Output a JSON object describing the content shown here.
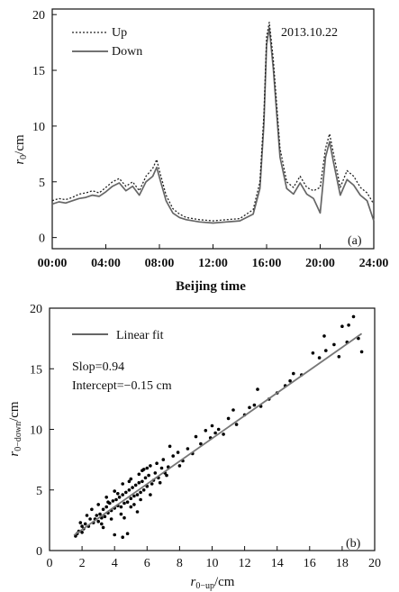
{
  "chart_data": [
    {
      "panel_label": "(a)",
      "type": "line",
      "title": "",
      "xlabel": "Beijing time",
      "ylabel": "r₀/cm",
      "ylabel_main": "r",
      "ylabel_sub": "0",
      "ylabel_unit": "/cm",
      "date_text": "2013.10.22",
      "x_tick_labels": [
        "00:00",
        "04:00",
        "08:00",
        "12:00",
        "16:00",
        "20:00",
        "24:00"
      ],
      "x_tick_hours": [
        0,
        4,
        8,
        12,
        16,
        20,
        24
      ],
      "xlim": [
        0,
        24
      ],
      "y_ticks": [
        0,
        5,
        10,
        15,
        20
      ],
      "y_tick_labels": [
        "0",
        "5",
        "10",
        "15",
        "20"
      ],
      "ylim": [
        -1,
        20.5
      ],
      "legend_position": "top-left",
      "series": [
        {
          "name": "Up",
          "style": "dotted",
          "color": "#222222",
          "x": [
            0,
            0.5,
            1,
            1.5,
            2,
            2.5,
            3,
            3.5,
            4,
            4.5,
            5,
            5.5,
            6,
            6.5,
            7,
            7.5,
            7.8,
            8,
            8.5,
            9,
            9.5,
            10,
            11,
            12,
            13,
            14,
            15,
            15.5,
            15.8,
            16,
            16.2,
            16.5,
            17,
            17.5,
            18,
            18.5,
            19,
            19.5,
            20,
            20.4,
            20.7,
            21,
            21.5,
            22,
            22.5,
            23,
            23.5,
            24
          ],
          "y": [
            3.3,
            3.5,
            3.4,
            3.6,
            3.9,
            4.0,
            4.2,
            4.0,
            4.5,
            5.0,
            5.3,
            4.6,
            5.0,
            4.2,
            5.5,
            6.2,
            7.0,
            6.0,
            3.8,
            2.6,
            2.1,
            1.8,
            1.6,
            1.5,
            1.6,
            1.7,
            2.5,
            5.0,
            11.0,
            18.0,
            19.3,
            16.0,
            8.0,
            5.0,
            4.5,
            5.5,
            4.5,
            4.2,
            4.5,
            8.0,
            9.3,
            7.5,
            4.5,
            6.0,
            5.5,
            4.5,
            4.0,
            3.0
          ]
        },
        {
          "name": "Down",
          "style": "solid",
          "color": "#666666",
          "x": [
            0,
            0.5,
            1,
            1.5,
            2,
            2.5,
            3,
            3.5,
            4,
            4.5,
            5,
            5.5,
            6,
            6.5,
            7,
            7.5,
            7.8,
            8,
            8.5,
            9,
            9.5,
            10,
            11,
            12,
            13,
            14,
            15,
            15.5,
            15.8,
            16,
            16.2,
            16.5,
            17,
            17.5,
            18,
            18.5,
            19,
            19.5,
            20,
            20.4,
            20.7,
            21,
            21.5,
            22,
            22.5,
            23,
            23.5,
            24
          ],
          "y": [
            3.0,
            3.2,
            3.1,
            3.3,
            3.5,
            3.6,
            3.8,
            3.7,
            4.1,
            4.6,
            4.9,
            4.2,
            4.6,
            3.8,
            5.0,
            5.5,
            6.3,
            5.4,
            3.3,
            2.2,
            1.8,
            1.6,
            1.4,
            1.3,
            1.4,
            1.5,
            2.1,
            4.4,
            10.2,
            17.3,
            18.8,
            15.2,
            7.2,
            4.4,
            3.9,
            4.9,
            3.9,
            3.5,
            2.2,
            7.2,
            8.6,
            6.7,
            3.8,
            5.2,
            4.7,
            3.8,
            3.3,
            1.5
          ]
        }
      ]
    },
    {
      "panel_label": "(b)",
      "type": "scatter",
      "title": "",
      "xlabel_main": "r",
      "xlabel_sub": "0−up",
      "xlabel_unit": "/cm",
      "ylabel_main": "r",
      "ylabel_sub": "0−down",
      "ylabel_unit": "/cm",
      "x_ticks": [
        0,
        2,
        4,
        6,
        8,
        10,
        12,
        14,
        16,
        18,
        20
      ],
      "x_tick_labels": [
        "0",
        "2",
        "4",
        "6",
        "8",
        "10",
        "12",
        "14",
        "16",
        "18",
        "20"
      ],
      "y_ticks": [
        0,
        5,
        10,
        15,
        20
      ],
      "y_tick_labels": [
        "0",
        "5",
        "10",
        "15",
        "20"
      ],
      "xlim": [
        0,
        20
      ],
      "ylim": [
        0,
        20
      ],
      "legend_position": "top-left",
      "fit": {
        "name": "Linear fit",
        "slope": 0.94,
        "intercept": -0.15,
        "x_range": [
          1.5,
          19.2
        ],
        "color": "#777777"
      },
      "annotation_lines": [
        "Slop=0.94",
        "Intercept=−0.15 cm"
      ],
      "points_color": "#000000",
      "points": [
        [
          1.6,
          1.2
        ],
        [
          1.8,
          1.6
        ],
        [
          2.0,
          1.5
        ],
        [
          2.2,
          2.2
        ],
        [
          2.4,
          2.0
        ],
        [
          2.5,
          2.6
        ],
        [
          2.7,
          2.3
        ],
        [
          2.9,
          2.9
        ],
        [
          3.0,
          2.4
        ],
        [
          3.1,
          3.0
        ],
        [
          3.2,
          2.7
        ],
        [
          3.3,
          3.4
        ],
        [
          3.4,
          2.8
        ],
        [
          3.5,
          3.6
        ],
        [
          3.6,
          3.1
        ],
        [
          3.7,
          3.9
        ],
        [
          3.8,
          3.3
        ],
        [
          3.9,
          4.1
        ],
        [
          4.0,
          3.5
        ],
        [
          4.1,
          4.2
        ],
        [
          4.2,
          3.7
        ],
        [
          4.3,
          4.4
        ],
        [
          4.4,
          3.6
        ],
        [
          4.5,
          4.6
        ],
        [
          4.6,
          3.9
        ],
        [
          4.7,
          4.8
        ],
        [
          4.8,
          4.0
        ],
        [
          4.9,
          5.0
        ],
        [
          5.0,
          4.3
        ],
        [
          5.1,
          5.2
        ],
        [
          5.2,
          4.5
        ],
        [
          5.3,
          5.4
        ],
        [
          5.4,
          4.6
        ],
        [
          5.5,
          5.6
        ],
        [
          5.6,
          4.8
        ],
        [
          5.7,
          5.7
        ],
        [
          5.8,
          5.0
        ],
        [
          5.9,
          6.0
        ],
        [
          6.0,
          5.3
        ],
        [
          6.1,
          6.2
        ],
        [
          6.3,
          5.5
        ],
        [
          6.5,
          6.4
        ],
        [
          6.7,
          6.0
        ],
        [
          6.9,
          6.8
        ],
        [
          7.1,
          6.4
        ],
        [
          3.0,
          3.8
        ],
        [
          3.5,
          4.4
        ],
        [
          4.0,
          4.9
        ],
        [
          4.5,
          5.5
        ],
        [
          5.0,
          5.9
        ],
        [
          5.5,
          6.3
        ],
        [
          6.0,
          6.8
        ],
        [
          3.2,
          2.2
        ],
        [
          3.8,
          2.6
        ],
        [
          4.4,
          3.0
        ],
        [
          5.0,
          3.6
        ],
        [
          5.6,
          4.2
        ],
        [
          6.2,
          4.6
        ],
        [
          4.0,
          1.3
        ],
        [
          4.5,
          1.1
        ],
        [
          4.8,
          1.4
        ],
        [
          2.6,
          3.4
        ],
        [
          2.3,
          2.9
        ],
        [
          2.1,
          1.8
        ],
        [
          1.9,
          2.3
        ],
        [
          7.0,
          7.5
        ],
        [
          7.3,
          6.9
        ],
        [
          7.6,
          7.8
        ],
        [
          7.9,
          8.1
        ],
        [
          8.2,
          7.4
        ],
        [
          8.5,
          8.4
        ],
        [
          8.8,
          8.0
        ],
        [
          9.0,
          9.4
        ],
        [
          9.3,
          8.8
        ],
        [
          9.6,
          9.9
        ],
        [
          9.9,
          9.3
        ],
        [
          10.0,
          10.3
        ],
        [
          10.2,
          9.7
        ],
        [
          10.4,
          10.0
        ],
        [
          11.0,
          10.9
        ],
        [
          11.5,
          10.4
        ],
        [
          12.0,
          11.2
        ],
        [
          12.3,
          11.8
        ],
        [
          12.6,
          12.0
        ],
        [
          13.0,
          11.9
        ],
        [
          13.5,
          12.5
        ],
        [
          14.0,
          13.0
        ],
        [
          14.5,
          13.6
        ],
        [
          15.0,
          14.6
        ],
        [
          16.2,
          16.3
        ],
        [
          16.6,
          15.9
        ],
        [
          17.0,
          16.5
        ],
        [
          17.5,
          17.0
        ],
        [
          18.0,
          18.5
        ],
        [
          18.4,
          18.6
        ],
        [
          18.7,
          19.3
        ],
        [
          19.0,
          17.5
        ],
        [
          19.2,
          16.4
        ],
        [
          18.3,
          17.2
        ],
        [
          17.8,
          16.0
        ],
        [
          16.9,
          17.7
        ],
        [
          12.8,
          13.3
        ],
        [
          14.8,
          14.0
        ],
        [
          15.5,
          14.5
        ],
        [
          11.3,
          11.6
        ],
        [
          10.7,
          9.6
        ],
        [
          8.0,
          7.0
        ],
        [
          7.4,
          8.6
        ],
        [
          6.6,
          7.2
        ],
        [
          6.4,
          5.8
        ],
        [
          5.2,
          3.8
        ],
        [
          5.8,
          6.7
        ],
        [
          4.2,
          4.7
        ],
        [
          3.6,
          4.0
        ],
        [
          2.8,
          2.6
        ],
        [
          2.0,
          2.0
        ],
        [
          1.7,
          1.4
        ],
        [
          4.6,
          2.7
        ],
        [
          5.4,
          3.2
        ],
        [
          3.3,
          1.9
        ],
        [
          6.8,
          5.6
        ],
        [
          7.2,
          6.2
        ],
        [
          6.2,
          7.0
        ],
        [
          5.7,
          6.6
        ],
        [
          4.9,
          5.7
        ]
      ]
    }
  ]
}
